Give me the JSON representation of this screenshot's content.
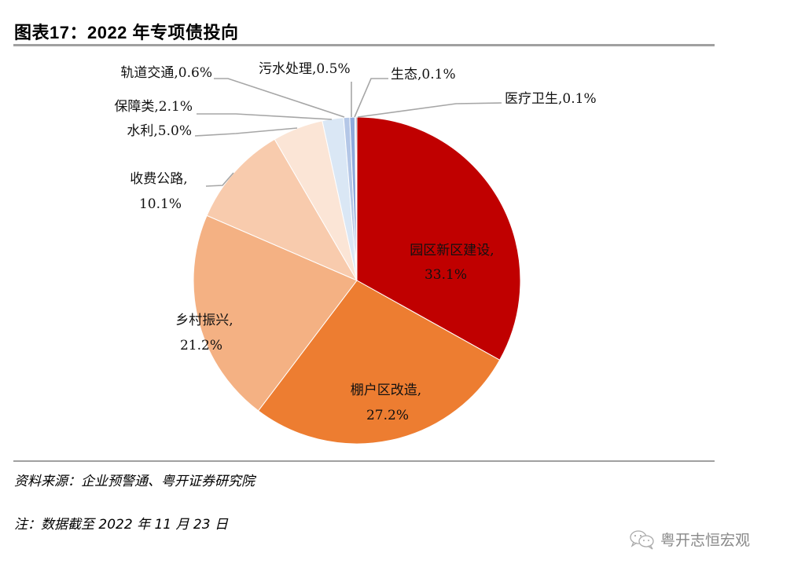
{
  "header": {
    "title": "图表17：2022 年专项债投向"
  },
  "footer": {
    "source": "资料来源：企业预警通、粤开证券研究院",
    "note": "注：数据截至 2022 年 11 月 23 日",
    "watermark": "粤开志恒宏观"
  },
  "chart_data": {
    "type": "pie",
    "title": "2022 年专项债投向",
    "unit": "%",
    "start_angle": "12 o'clock, clockwise",
    "categories": [
      "园区新区建设",
      "棚户区改造",
      "乡村振兴",
      "收费公路",
      "水利",
      "保障类",
      "轨道交通",
      "污水处理",
      "生态",
      "医疗卫生"
    ],
    "values": [
      33.1,
      27.2,
      21.2,
      10.1,
      5.0,
      2.1,
      0.6,
      0.5,
      0.1,
      0.1
    ],
    "colors": [
      "#c00000",
      "#ed7d31",
      "#f4b183",
      "#f8cbad",
      "#fbe5d6",
      "#dae7f5",
      "#b4c7e7",
      "#8faadc",
      "#4472c4",
      "#1f4e79"
    ],
    "labels": [
      {
        "name": "园区新区建设",
        "value": "33.1%",
        "line1": "园区新区建设,",
        "line2": "33.1%"
      },
      {
        "name": "棚户区改造",
        "value": "27.2%",
        "line1": "棚户区改造,",
        "line2": "27.2%"
      },
      {
        "name": "乡村振兴",
        "value": "21.2%",
        "line1": "乡村振兴,",
        "line2": "21.2%"
      },
      {
        "name": "收费公路",
        "value": "10.1%",
        "line1": "收费公路,",
        "line2": "10.1%"
      },
      {
        "name": "水利",
        "value": "5.0%",
        "line1": "水利,5.0%"
      },
      {
        "name": "保障类",
        "value": "2.1%",
        "line1": "保障类,2.1%"
      },
      {
        "name": "轨道交通",
        "value": "0.6%",
        "line1": "轨道交通,0.6%"
      },
      {
        "name": "污水处理",
        "value": "0.5%",
        "line1": "污水处理,0.5%"
      },
      {
        "name": "生态",
        "value": "0.1%",
        "line1": "生态,0.1%"
      },
      {
        "name": "医疗卫生",
        "value": "0.1%",
        "line1": "医疗卫生,0.1%"
      }
    ],
    "legend": "none (data labels with leader lines)"
  }
}
